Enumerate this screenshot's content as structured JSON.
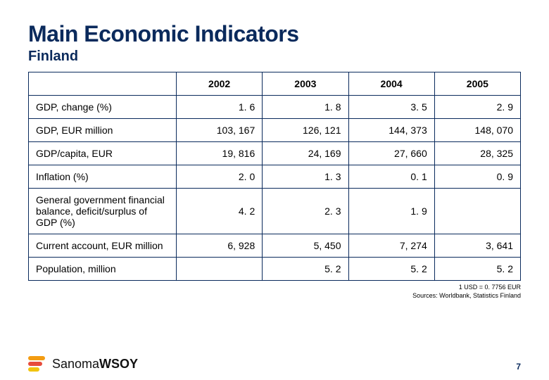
{
  "title": "Main Economic Indicators",
  "subtitle": "Finland",
  "table": {
    "columns": [
      "2002",
      "2003",
      "2004",
      "2005"
    ],
    "rows": [
      {
        "label": "GDP, change (%)",
        "values": [
          "1. 6",
          "1. 8",
          "3. 5",
          "2. 9"
        ]
      },
      {
        "label": "GDP, EUR million",
        "values": [
          "103, 167",
          "126, 121",
          "144, 373",
          "148, 070"
        ]
      },
      {
        "label": "GDP/capita, EUR",
        "values": [
          "19, 816",
          "24, 169",
          "27, 660",
          "28, 325"
        ]
      },
      {
        "label": "Inflation (%)",
        "values": [
          "2. 0",
          "1. 3",
          "0. 1",
          "0. 9"
        ]
      },
      {
        "label": "General government financial balance, deficit/surplus of GDP (%)",
        "values": [
          "4. 2",
          "2. 3",
          "1. 9",
          ""
        ]
      },
      {
        "label": "Current account, EUR million",
        "values": [
          "6, 928",
          "5, 450",
          "7, 274",
          "3, 641"
        ]
      },
      {
        "label": "Population, million",
        "values": [
          "",
          "5. 2",
          "5. 2",
          "5. 2"
        ]
      }
    ]
  },
  "footnote_line1": "1 USD = 0. 7756 EUR",
  "footnote_line2": "Sources: Worldbank, Statistics Finland",
  "logo_text_a": "Sanoma",
  "logo_text_b": "WSOY",
  "page_number": "7",
  "colors": {
    "brand_navy": "#0a2a5c",
    "logo_orange": "#f39c12",
    "logo_red": "#e74c3c",
    "logo_yellow": "#f1c40f"
  }
}
